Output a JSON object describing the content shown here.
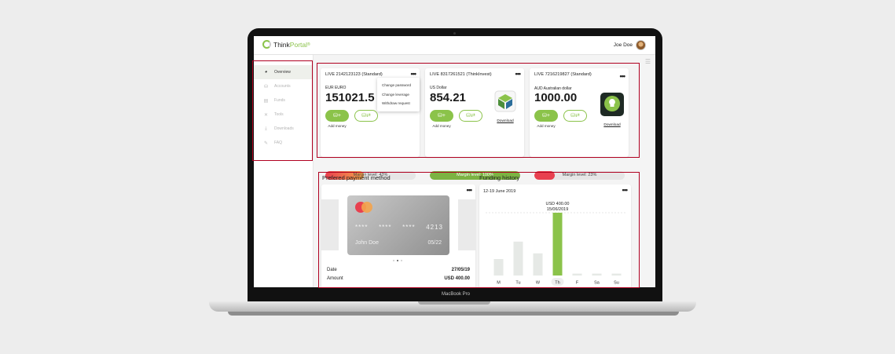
{
  "header": {
    "logo_main": "Think",
    "logo_accent": "Portal",
    "logo_tm": "®",
    "user_name": "Joe Doe"
  },
  "sidebar": {
    "items": [
      {
        "label": "Overview",
        "icon": "speedometer-icon"
      },
      {
        "label": "Accounts",
        "icon": "coins-icon"
      },
      {
        "label": "Funds",
        "icon": "wallet-icon"
      },
      {
        "label": "Tools",
        "icon": "tools-icon"
      },
      {
        "label": "Downloads",
        "icon": "download-icon"
      },
      {
        "label": "FAQ",
        "icon": "chat-icon"
      }
    ],
    "active_index": 0
  },
  "accounts": [
    {
      "title": "LIVE 2142123123 (Standard)",
      "currency": "EUR EURO",
      "currency_muted": "",
      "balance": "151021.5",
      "margin_text": "Margin level: 43%",
      "margin_value": 43,
      "margin_color": "#f4a34b"
    },
    {
      "title": "LIVE 8317261521 (ThinkInvest)",
      "currency": "US Dollar",
      "currency_muted": "",
      "balance": "854.21",
      "download_label": "Download",
      "margin_text": "Margin level: 100%",
      "margin_value": 100,
      "margin_color": "#7cb342"
    },
    {
      "title": "LIVE 7216219827 (Standard)",
      "currency": "AUD Australian dollar",
      "currency_muted": "",
      "balance": "1000.00",
      "download_label": "Download",
      "margin_text": "Margin level: 23%",
      "margin_value": 23,
      "margin_color": "#e8404f"
    }
  ],
  "account_actions": {
    "add_money": "Add money",
    "transfer": "Transfer"
  },
  "context_menu": {
    "items": [
      "Change password",
      "Change leverage",
      "Withdraw request"
    ]
  },
  "payment": {
    "section_title": "Prefered payment method",
    "card_groups": [
      "****",
      "****",
      "****",
      "4213"
    ],
    "card_holder": "John Doe",
    "card_expiry": "05/22",
    "rows": [
      {
        "label": "Date",
        "value": "27/05/19"
      },
      {
        "label": "Amount",
        "value": "USD 400.00"
      }
    ]
  },
  "funding": {
    "section_title": "Funding history",
    "range": "12-19 June 2019"
  },
  "colors": {
    "accent": "#8bc34a",
    "outline": "#b00020"
  },
  "chart_data": {
    "type": "bar",
    "categories": [
      "M",
      "Tu",
      "W",
      "Th",
      "F",
      "Sa",
      "Su"
    ],
    "values": [
      105,
      216,
      141,
      400,
      12,
      12,
      12
    ],
    "highlight_index": 3,
    "highlight_amount": "USD 400.00",
    "highlight_date": "15/06/2019",
    "ylim": [
      0,
      400
    ],
    "grid": false,
    "title": "",
    "xlabel": "",
    "ylabel": ""
  },
  "device": {
    "label": "MacBook Pro"
  }
}
